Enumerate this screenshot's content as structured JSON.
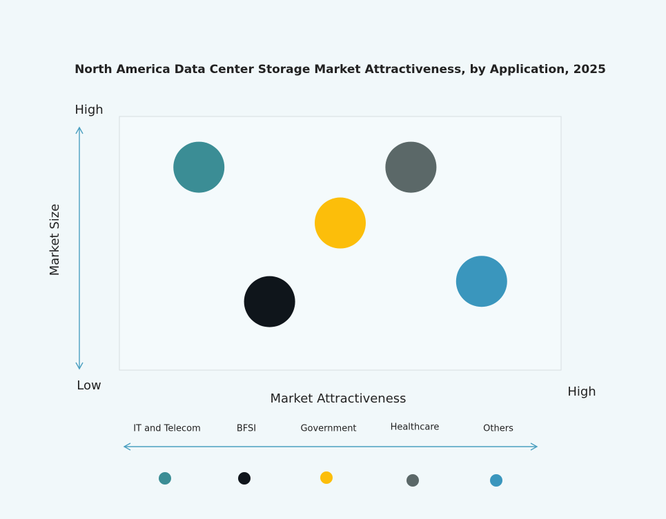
{
  "chart_data": {
    "type": "scatter",
    "title": "North America Data Center Storage Market Attractiveness,  by Application, 2025",
    "x_label": "Market Attractiveness",
    "y_label": "Market Size",
    "categories": [
      "IT and Telecom",
      "BFSI",
      "Government",
      "Healthcare",
      "Others"
    ],
    "x": [
      18,
      34,
      50,
      66,
      82
    ],
    "values": [
      80,
      27,
      58,
      80,
      35
    ],
    "colors": [
      "#3b8d95",
      "#0f151b",
      "#fcbe0a",
      "#5b6868",
      "#3a96bd"
    ],
    "xlim": [
      0,
      100
    ],
    "ylim": [
      0,
      100
    ],
    "xticks": [
      {
        "value": 100,
        "label": "High"
      }
    ],
    "yticks": [
      {
        "value": 0,
        "label": "Low"
      },
      {
        "value": 100,
        "label": "High"
      }
    ]
  }
}
